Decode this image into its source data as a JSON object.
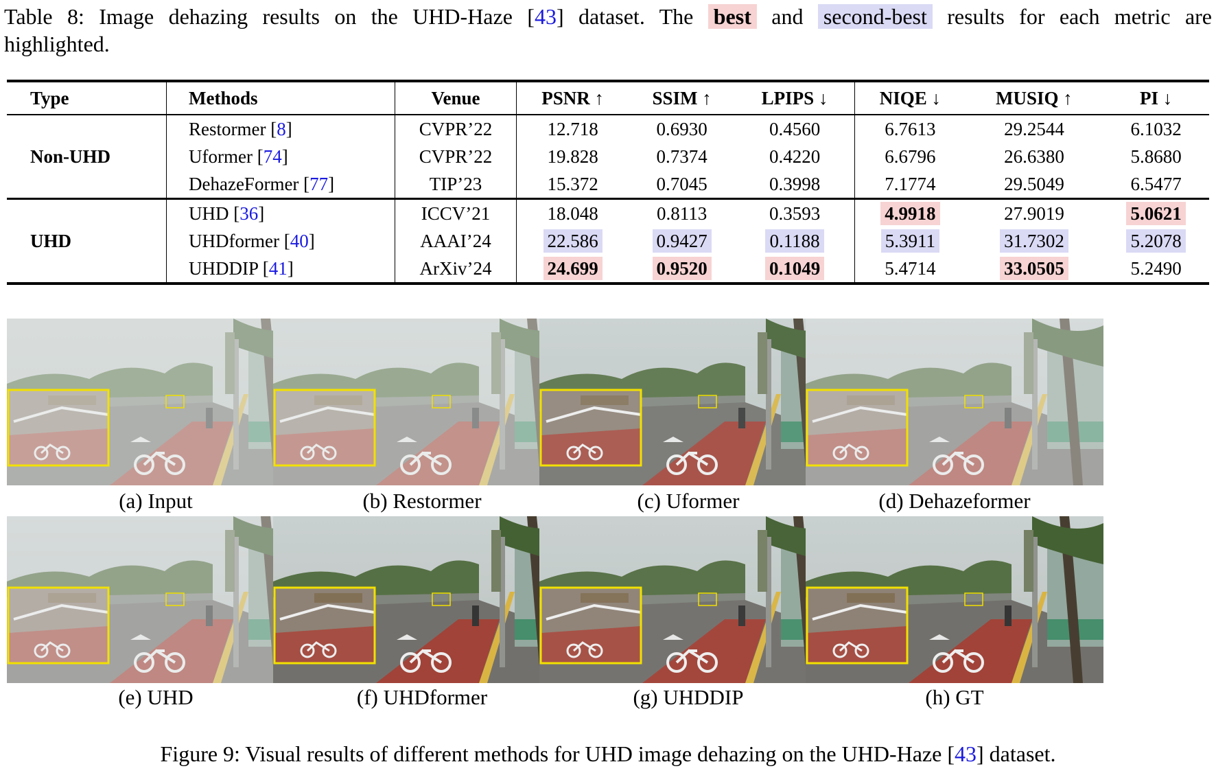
{
  "table_caption": {
    "prefix": "Table 8: Image dehazing results on the UHD-Haze [",
    "cite": "43",
    "mid": "] dataset. The",
    "best": "best",
    "and": "and",
    "second": "second-best",
    "suffix": "results for each metric are",
    "line2": "highlighted."
  },
  "table": {
    "headers": [
      "Type",
      "Methods",
      "Venue",
      "PSNR ↑",
      "SSIM ↑",
      "LPIPS ↓",
      "NIQE ↓",
      "MUSIQ ↑",
      "PI ↓"
    ],
    "groups": [
      {
        "type": "Non-UHD",
        "rows": [
          {
            "method": "Restormer [",
            "cite": "8",
            "venue": "CVPR’22",
            "values": [
              "12.718",
              "0.6930",
              "0.4560",
              "6.7613",
              "29.2544",
              "6.1032"
            ],
            "marks": [
              "",
              "",
              "",
              "",
              "",
              ""
            ]
          },
          {
            "method": "Uformer [",
            "cite": "74",
            "venue": "CVPR’22",
            "values": [
              "19.828",
              "0.7374",
              "0.4220",
              "6.6796",
              "26.6380",
              "5.8680"
            ],
            "marks": [
              "",
              "",
              "",
              "",
              "",
              ""
            ]
          },
          {
            "method": "DehazeFormer [",
            "cite": "77",
            "venue": "TIP’23",
            "values": [
              "15.372",
              "0.7045",
              "0.3998",
              "7.1774",
              "29.5049",
              "6.5477"
            ],
            "marks": [
              "",
              "",
              "",
              "",
              "",
              ""
            ]
          }
        ]
      },
      {
        "type": "UHD",
        "rows": [
          {
            "method": "UHD [",
            "cite": "36",
            "venue": "ICCV’21",
            "values": [
              "18.048",
              "0.8113",
              "0.3593",
              "4.9918",
              "27.9019",
              "5.0621"
            ],
            "marks": [
              "",
              "",
              "",
              "best",
              "",
              "best"
            ]
          },
          {
            "method": "UHDformer [",
            "cite": "40",
            "venue": "AAAI’24",
            "values": [
              "22.586",
              "0.9427",
              "0.1188",
              "5.3911",
              "31.7302",
              "5.2078"
            ],
            "marks": [
              "second",
              "second",
              "second",
              "second",
              "second",
              "second"
            ]
          },
          {
            "method": "UHDDIP [",
            "cite": "41",
            "venue": "ArXiv’24",
            "values": [
              "24.699",
              "0.9520",
              "0.1049",
              "5.4714",
              "33.0505",
              "5.2490"
            ],
            "marks": [
              "best",
              "best",
              "best",
              "",
              "best",
              ""
            ]
          }
        ]
      }
    ]
  },
  "figure": {
    "panels": [
      {
        "label": "(a) Input",
        "haze": 0.55
      },
      {
        "label": "(b) Restormer",
        "haze": 0.5
      },
      {
        "label": "(c) Uformer",
        "haze": 0.15
      },
      {
        "label": "(d) Dehazeformer",
        "haze": 0.45
      },
      {
        "label": "(e) UHD",
        "haze": 0.45
      },
      {
        "label": "(f) UHDformer",
        "haze": 0.05
      },
      {
        "label": "(g) UHDDIP",
        "haze": 0.08
      },
      {
        "label": "(h) GT",
        "haze": 0.05
      }
    ],
    "caption_prefix": "Figure 9: Visual results of different methods for UHD image dehazing on the UHD-Haze [",
    "caption_cite": "43",
    "caption_suffix": "] dataset."
  },
  "colors": {
    "best": "#f7d3d3",
    "second": "#dadaf5",
    "cite": "#1a1adf",
    "zoom_box": "#f2e000"
  }
}
